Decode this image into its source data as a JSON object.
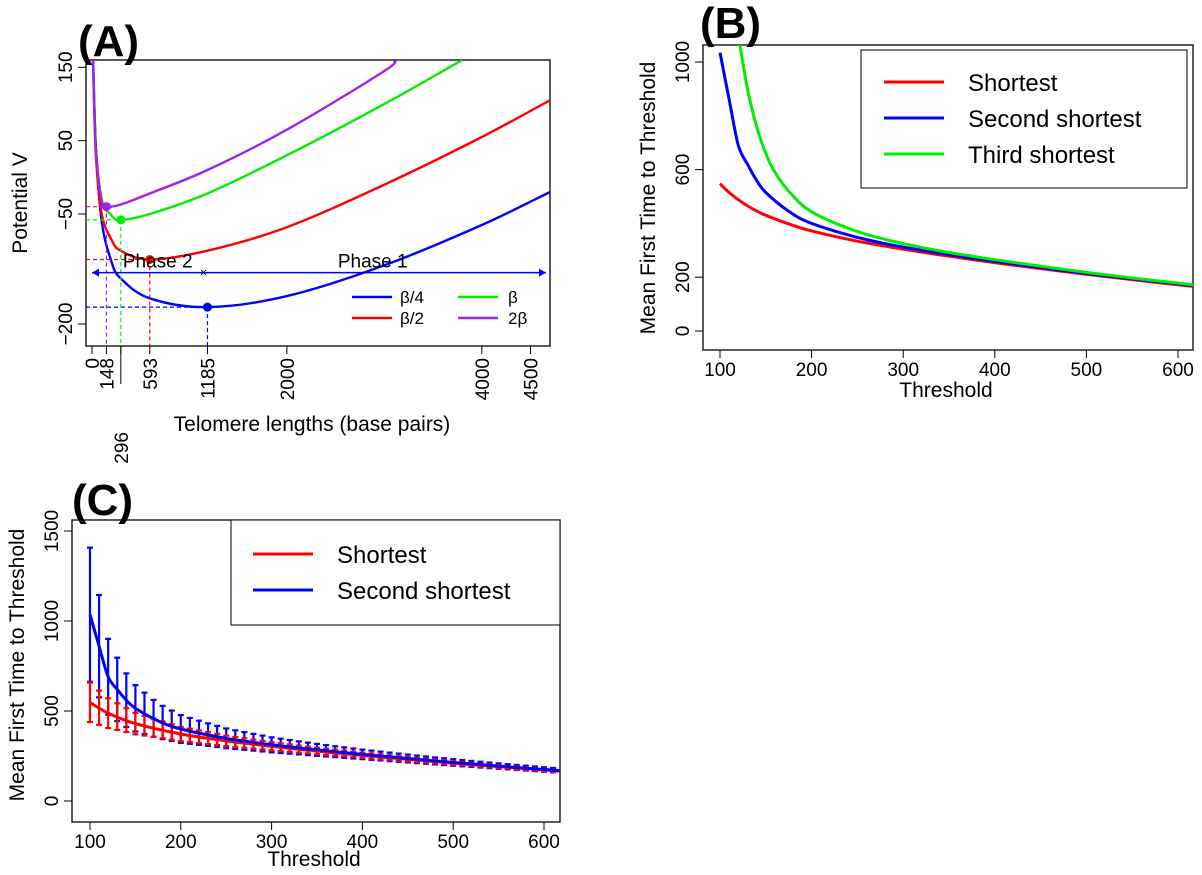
{
  "colors": {
    "red": "#ff0000",
    "blue": "#0000ff",
    "green": "#00ee00",
    "purple": "#a020f0",
    "axis": "#000000"
  },
  "chart_data": [
    {
      "panel": "(A)",
      "type": "line",
      "xlabel": "Telomere lengths (base pairs)",
      "ylabel": "Potential V",
      "xlim": [
        0,
        4700
      ],
      "ylim": [
        -230,
        160
      ],
      "xticks": [
        0,
        148,
        296,
        593,
        1185,
        2000,
        4000,
        4500
      ],
      "yticks": [
        -200,
        -50,
        50,
        150
      ],
      "legend": [
        "β/4",
        "β/2",
        "β",
        "2β"
      ],
      "series": [
        {
          "name": "β/4",
          "color": "blue",
          "minimum": {
            "x": 1185,
            "y": -177
          },
          "points": [
            [
              12,
              160
            ],
            [
              40,
              40
            ],
            [
              100,
              -60
            ],
            [
              200,
              -115
            ],
            [
              296,
              -138
            ],
            [
              593,
              -165
            ],
            [
              1185,
              -177
            ],
            [
              2000,
              -162
            ],
            [
              3000,
              -120
            ],
            [
              4000,
              -65
            ],
            [
              4700,
              -20
            ]
          ]
        },
        {
          "name": "β/2",
          "color": "red",
          "minimum": {
            "x": 593,
            "y": -112
          },
          "points": [
            [
              10,
              160
            ],
            [
              40,
              30
            ],
            [
              100,
              -50
            ],
            [
              200,
              -85
            ],
            [
              296,
              -100
            ],
            [
              593,
              -112
            ],
            [
              1185,
              -100
            ],
            [
              2000,
              -68
            ],
            [
              3000,
              -10
            ],
            [
              4000,
              55
            ],
            [
              4700,
              105
            ]
          ]
        },
        {
          "name": "β",
          "color": "green",
          "minimum": {
            "x": 296,
            "y": -58
          },
          "points": [
            [
              10,
              160
            ],
            [
              40,
              40
            ],
            [
              100,
              -30
            ],
            [
              200,
              -52
            ],
            [
              296,
              -58
            ],
            [
              593,
              -50
            ],
            [
              1185,
              -22
            ],
            [
              2000,
              30
            ],
            [
              3000,
              100
            ],
            [
              3800,
              160
            ]
          ]
        },
        {
          "name": "2β",
          "color": "purple",
          "minimum": {
            "x": 148,
            "y": -40
          },
          "points": [
            [
              10,
              160
            ],
            [
              40,
              40
            ],
            [
              100,
              -33
            ],
            [
              148,
              -40
            ],
            [
              296,
              -37
            ],
            [
              593,
              -22
            ],
            [
              1185,
              10
            ],
            [
              2000,
              65
            ],
            [
              3000,
              145
            ],
            [
              3100,
              160
            ]
          ]
        }
      ],
      "annotations": {
        "phase2": "Phase 2",
        "phase1": "Phase 1",
        "phase_y": -130,
        "phase_split_x": 1185
      }
    },
    {
      "panel": "(B)",
      "type": "line",
      "xlabel": "Threshold",
      "ylabel": "Mean First Time to Threshold",
      "xlim": [
        100,
        620
      ],
      "ylim": [
        0,
        1100
      ],
      "xticks": [
        100,
        200,
        300,
        400,
        500,
        600
      ],
      "yticks": [
        0,
        200,
        600,
        1000
      ],
      "series": [
        {
          "name": "Shortest",
          "color": "red",
          "x": [
            100,
            110,
            120,
            130,
            140,
            150,
            175,
            200,
            250,
            300,
            350,
            400,
            450,
            500,
            550,
            600,
            620
          ],
          "values": [
            548,
            515,
            488,
            465,
            446,
            430,
            398,
            372,
            334,
            304,
            278,
            254,
            232,
            211,
            191,
            172,
            165
          ]
        },
        {
          "name": "Second shortest",
          "color": "blue",
          "x": [
            100,
            110,
            120,
            130,
            140,
            150,
            175,
            200,
            250,
            300,
            350,
            400,
            450,
            500,
            550,
            600,
            620
          ],
          "values": [
            1035,
            860,
            690,
            620,
            560,
            515,
            445,
            400,
            348,
            312,
            284,
            259,
            236,
            214,
            194,
            175,
            168
          ]
        },
        {
          "name": "Third shortest",
          "color": "green",
          "x": [
            120,
            130,
            140,
            150,
            160,
            175,
            200,
            250,
            300,
            350,
            400,
            450,
            500,
            550,
            600,
            620
          ],
          "values": [
            1100,
            900,
            760,
            660,
            590,
            520,
            443,
            370,
            325,
            292,
            265,
            241,
            218,
            197,
            178,
            170
          ]
        }
      ],
      "legend": [
        "Shortest",
        "Second shortest",
        "Third shortest"
      ],
      "legend_position": "top-right"
    },
    {
      "panel": "(C)",
      "type": "line",
      "xlabel": "Threshold",
      "ylabel": "Mean First Time to Threshold",
      "xlim": [
        80,
        620
      ],
      "ylim": [
        -40,
        1620
      ],
      "xticks": [
        100,
        200,
        300,
        400,
        500,
        600
      ],
      "yticks": [
        0,
        500,
        1000,
        1500
      ],
      "error_bar_x": [
        100,
        110,
        120,
        130,
        140,
        150,
        160,
        170,
        180,
        190,
        200,
        210,
        220,
        230,
        240,
        250,
        260,
        270,
        280,
        290,
        300,
        310,
        320,
        330,
        340,
        350,
        360,
        370,
        380,
        390,
        400,
        410,
        420,
        430,
        440,
        450,
        460,
        470,
        480,
        490,
        500,
        510,
        520,
        530,
        540,
        550,
        560,
        570,
        580,
        590,
        600,
        610
      ],
      "series": [
        {
          "name": "Shortest",
          "color": "red",
          "x": [
            100,
            120,
            150,
            200,
            250,
            300,
            350,
            400,
            450,
            500,
            550,
            600,
            620
          ],
          "values": [
            548,
            488,
            430,
            372,
            334,
            304,
            278,
            254,
            232,
            211,
            191,
            172,
            165
          ],
          "error_rel": 0.2
        },
        {
          "name": "Second shortest",
          "color": "blue",
          "x": [
            100,
            110,
            120,
            130,
            140,
            150,
            175,
            200,
            250,
            300,
            350,
            400,
            450,
            500,
            550,
            600,
            620
          ],
          "values": [
            1035,
            860,
            690,
            620,
            560,
            515,
            445,
            400,
            348,
            312,
            284,
            259,
            236,
            214,
            194,
            175,
            168
          ],
          "error_rel": 0.36
        }
      ],
      "legend": [
        "Shortest",
        "Second shortest"
      ],
      "legend_position": "top-right"
    }
  ]
}
